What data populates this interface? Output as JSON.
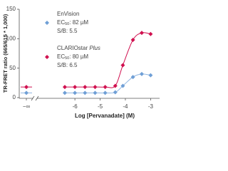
{
  "chart_data": {
    "type": "scatter",
    "x_label": "Log [Pervanadate] (M)",
    "y_label": "TR-FRET ratio (665/615 * 1,000)",
    "xlim": [
      -7.5,
      -2.7
    ],
    "xticks": [
      -6,
      -5,
      -4,
      -3
    ],
    "zero_dose_tick": "−∞",
    "ylim": [
      0,
      150
    ],
    "yticks": [
      0,
      50,
      100,
      150
    ],
    "x": [
      -6.4,
      -6.0,
      -5.6,
      -5.2,
      -4.8,
      -4.4,
      -4.1,
      -3.7,
      -3.35,
      -3.0
    ],
    "series": [
      {
        "name": "EnVision",
        "color": "#6f9fd6",
        "line_color": "#8fb5e0",
        "zero_dose_value": 8,
        "values": [
          8,
          8,
          8,
          8,
          8,
          9,
          20,
          35,
          40,
          38
        ],
        "annotations": [
          {
            "prefix": "EC",
            "sub": "50",
            "rest": ": 82 µM"
          },
          {
            "prefix": "S/B: 5.5"
          }
        ]
      },
      {
        "name": "CLARIOstar",
        "name_italic": "Plus",
        "color": "#d0104f",
        "line_color": "#d0104f",
        "zero_dose_value": 18,
        "values": [
          18,
          18,
          18,
          18,
          18,
          20,
          55,
          98,
          110,
          108
        ],
        "annotations": [
          {
            "prefix": "EC",
            "sub": "50",
            "rest": ": 80 µM"
          },
          {
            "prefix": "S/B: 6.5"
          }
        ]
      }
    ]
  }
}
